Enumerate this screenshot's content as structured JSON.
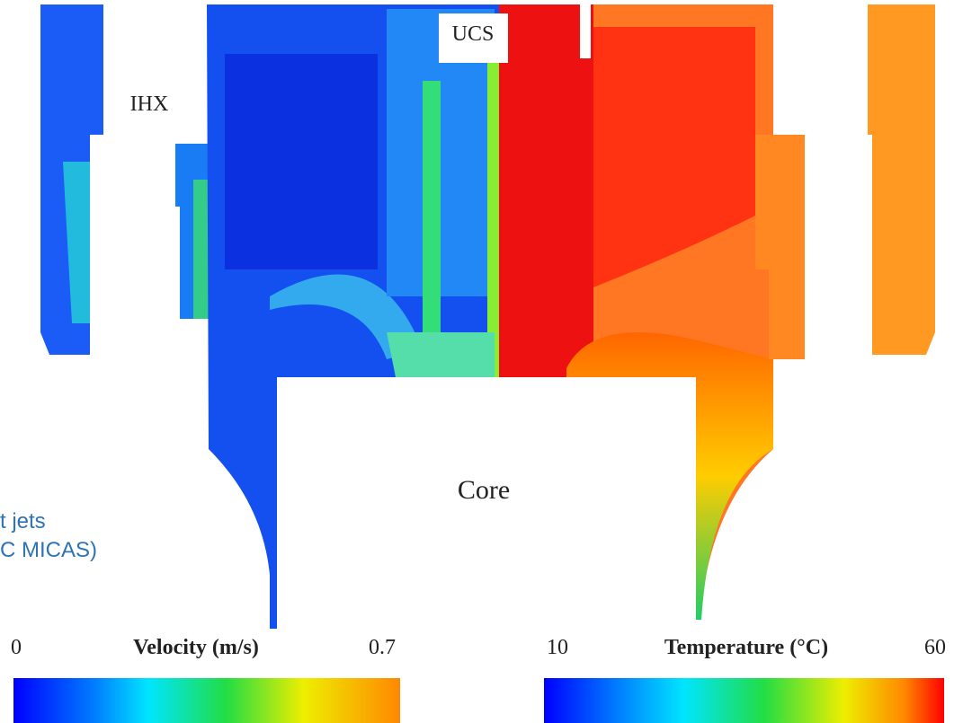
{
  "labels": {
    "ihx": "IHX",
    "ucs": "UCS",
    "core": "Core"
  },
  "caption": {
    "line1": "t jets",
    "line2": "C MICAS)"
  },
  "velocity_scale": {
    "min": 0,
    "title": "Velocity (m/s)",
    "max": 0.7
  },
  "temperature_scale": {
    "min": 10,
    "title": "Temperature (°C)",
    "max": 60
  }
}
